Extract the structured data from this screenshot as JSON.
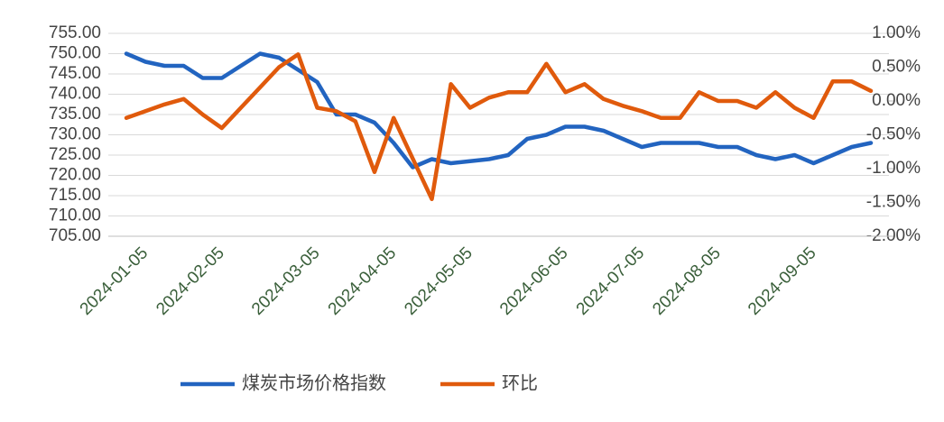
{
  "chart_data": {
    "type": "line",
    "categories": [
      null,
      "2024-01-05",
      null,
      null,
      null,
      "2024-02-05",
      null,
      null,
      null,
      null,
      "2024-03-05",
      null,
      null,
      null,
      "2024-04-05",
      null,
      null,
      null,
      "2024-05-05",
      null,
      null,
      null,
      null,
      "2024-06-05",
      null,
      null,
      null,
      "2024-07-05",
      null,
      null,
      null,
      "2024-08-05",
      null,
      null,
      null,
      null,
      "2024-09-05",
      null,
      null,
      null
    ],
    "series": [
      {
        "name": "煤炭市场价格指数",
        "color": "#2264c0",
        "values": [
          750,
          748,
          747,
          747,
          744,
          744,
          747,
          750,
          749,
          746,
          743,
          735,
          735,
          733,
          728,
          722,
          724,
          723,
          723.5,
          724,
          725,
          729,
          730,
          732,
          732,
          731,
          729,
          727,
          728,
          728,
          728,
          727,
          727,
          725,
          724,
          725,
          723,
          725,
          727,
          728
        ]
      },
      {
        "name": "环比",
        "color": "#e05a0c",
        "axis": "y2",
        "values": [
          -0.25,
          -0.15,
          -0.05,
          0.03,
          -0.2,
          -0.4,
          -0.1,
          0.2,
          0.5,
          0.69,
          -0.1,
          -0.15,
          -0.3,
          -1.05,
          -0.25,
          -0.85,
          -1.45,
          0.25,
          -0.1,
          0.05,
          0.13,
          0.13,
          0.55,
          0.13,
          0.25,
          0.03,
          -0.07,
          -0.15,
          -0.25,
          -0.25,
          0.13,
          0.0,
          0.0,
          -0.1,
          0.13,
          -0.1,
          -0.25,
          0.29,
          0.29,
          0.15
        ]
      }
    ],
    "ylim": [
      705,
      755
    ],
    "yticks": [
      {
        "value": 705,
        "label": "705.00"
      },
      {
        "value": 710,
        "label": "710.00"
      },
      {
        "value": 715,
        "label": "715.00"
      },
      {
        "value": 720,
        "label": "720.00"
      },
      {
        "value": 725,
        "label": "725.00"
      },
      {
        "value": 730,
        "label": "730.00"
      },
      {
        "value": 735,
        "label": "735.00"
      },
      {
        "value": 740,
        "label": "740.00"
      },
      {
        "value": 745,
        "label": "745.00"
      },
      {
        "value": 750,
        "label": "750.00"
      },
      {
        "value": 755,
        "label": "755.00"
      }
    ],
    "y2lim": [
      -2,
      1
    ],
    "y2ticks": [
      {
        "value": -2,
        "label": "-2.00%"
      },
      {
        "value": -1.5,
        "label": "-1.50%"
      },
      {
        "value": -1,
        "label": "-1.00%"
      },
      {
        "value": -0.5,
        "label": "-0.50%"
      },
      {
        "value": 0,
        "label": "0.00%"
      },
      {
        "value": 0.5,
        "label": "0.50%"
      },
      {
        "value": 1,
        "label": "1.00%"
      }
    ],
    "grid": true,
    "legend": "bottom"
  }
}
